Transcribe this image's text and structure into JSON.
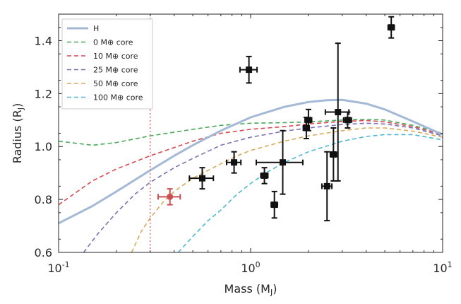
{
  "chart_data": {
    "type": "scatter",
    "xlabel": "Mass (M_J)",
    "ylabel": "Radius (R_J)",
    "x_scale": "log",
    "xlim": [
      0.1,
      10
    ],
    "ylim": [
      0.6,
      1.5
    ],
    "xticks": [
      "10^-1",
      "10^0",
      "10^1"
    ],
    "yticks": [
      "0.6",
      "0.8",
      "1.0",
      "1.2",
      "1.4"
    ],
    "grid": false,
    "legend": {
      "placement": "top-left",
      "entries": [
        "H",
        "0 M⊕ core",
        "10 M⊕ core",
        "25 M⊕ core",
        "50 M⊕ core",
        "100 M⊕ core"
      ]
    },
    "series": [
      {
        "name": "H",
        "style": "solid",
        "color": "#a4b9d6",
        "x": [
          0.1,
          0.15,
          0.2,
          0.3,
          0.4,
          0.5,
          0.7,
          1.0,
          1.5,
          2.0,
          2.5,
          3.0,
          4.0,
          5.0,
          7.0,
          10.0
        ],
        "y": [
          0.71,
          0.775,
          0.83,
          0.91,
          0.965,
          1.005,
          1.06,
          1.11,
          1.15,
          1.168,
          1.175,
          1.176,
          1.162,
          1.14,
          1.095,
          1.045
        ]
      },
      {
        "name": "0 M⊕ core",
        "style": "dashed",
        "color": "#4aa85a",
        "x": [
          0.1,
          0.15,
          0.2,
          0.3,
          0.5,
          0.7,
          1.0,
          1.5,
          2.0,
          3.0,
          4.0,
          5.0,
          7.0,
          10.0
        ],
        "y": [
          1.02,
          1.005,
          1.015,
          1.04,
          1.065,
          1.08,
          1.088,
          1.09,
          1.093,
          1.1,
          1.103,
          1.1,
          1.08,
          1.05
        ]
      },
      {
        "name": "10 M⊕ core",
        "style": "dashed",
        "color": "#d9474e",
        "x": [
          0.1,
          0.15,
          0.2,
          0.3,
          0.5,
          0.7,
          1.0,
          1.5,
          2.0,
          3.0,
          4.0,
          5.0,
          7.0,
          10.0
        ],
        "y": [
          0.78,
          0.87,
          0.915,
          0.965,
          1.02,
          1.05,
          1.065,
          1.075,
          1.085,
          1.095,
          1.098,
          1.093,
          1.075,
          1.045
        ]
      },
      {
        "name": "25 M⊕ core",
        "style": "dashed",
        "color": "#7d6fb5",
        "x": [
          0.135,
          0.16,
          0.2,
          0.25,
          0.3,
          0.4,
          0.5,
          0.7,
          1.0,
          1.5,
          2.0,
          3.0,
          4.0,
          5.0,
          7.0,
          10.0
        ],
        "y": [
          0.6,
          0.67,
          0.75,
          0.82,
          0.865,
          0.92,
          0.955,
          1.005,
          1.035,
          1.058,
          1.07,
          1.083,
          1.088,
          1.085,
          1.07,
          1.04
        ]
      },
      {
        "name": "50 M⊕ core",
        "style": "dashed",
        "color": "#d6ac5c",
        "x": [
          0.24,
          0.27,
          0.3,
          0.35,
          0.4,
          0.5,
          0.7,
          0.85,
          1.0,
          1.5,
          2.0,
          3.0,
          4.0,
          5.0,
          7.0,
          10.0
        ],
        "y": [
          0.6,
          0.68,
          0.73,
          0.79,
          0.83,
          0.88,
          0.935,
          0.965,
          0.985,
          1.02,
          1.04,
          1.06,
          1.07,
          1.07,
          1.058,
          1.035
        ]
      },
      {
        "name": "100 M⊕ core",
        "style": "dashed",
        "color": "#4eb9d6",
        "x": [
          0.42,
          0.5,
          0.6,
          0.7,
          0.85,
          1.0,
          1.2,
          1.5,
          2.0,
          3.0,
          4.0,
          5.0,
          7.0,
          10.0
        ],
        "y": [
          0.6,
          0.66,
          0.72,
          0.76,
          0.82,
          0.86,
          0.9,
          0.94,
          0.98,
          1.02,
          1.038,
          1.045,
          1.045,
          1.025
        ]
      }
    ],
    "vline": {
      "x": 0.3,
      "style": "dotted",
      "color": "#e06060"
    },
    "points": [
      {
        "x": 0.38,
        "y": 0.81,
        "xerr": 0.05,
        "yerr": 0.03,
        "color": "#c8504f",
        "marker": "circle"
      },
      {
        "x": 0.56,
        "y": 0.88,
        "xerr": 0.08,
        "yerr": 0.04,
        "color": "#111111",
        "marker": "square"
      },
      {
        "x": 0.82,
        "y": 0.94,
        "xerr": 0.07,
        "yerr": 0.04,
        "color": "#111111",
        "marker": "square"
      },
      {
        "x": 0.98,
        "y": 1.29,
        "xerr": 0.1,
        "yerr": 0.05,
        "color": "#111111",
        "marker": "square"
      },
      {
        "x": 1.18,
        "y": 0.89,
        "xerr": 0.05,
        "yerr": 0.03,
        "color": "#111111",
        "marker": "square"
      },
      {
        "x": 1.33,
        "y": 0.78,
        "xerr": 0.05,
        "yerr": 0.05,
        "color": "#111111",
        "marker": "square"
      },
      {
        "x": 1.47,
        "y": 0.94,
        "xerr": 0.4,
        "yerr": 0.12,
        "color": "#111111",
        "marker": "square"
      },
      {
        "x": 1.95,
        "y": 1.07,
        "xerr": 0.07,
        "yerr": 0.04,
        "color": "#111111",
        "marker": "square"
      },
      {
        "x": 2.0,
        "y": 1.1,
        "xerr": 0.08,
        "yerr": 0.04,
        "color": "#111111",
        "marker": "square"
      },
      {
        "x": 2.5,
        "y": 0.85,
        "xerr": 0.15,
        "yerr": 0.13,
        "color": "#111111",
        "marker": "square"
      },
      {
        "x": 2.7,
        "y": 0.97,
        "xerr": 0.1,
        "yerr": 0.1,
        "color": "#111111",
        "marker": "square"
      },
      {
        "x": 2.85,
        "y": 1.13,
        "xerr": 0.4,
        "yerr": 0.26,
        "color": "#111111",
        "marker": "square"
      },
      {
        "x": 3.2,
        "y": 1.1,
        "xerr": 0.15,
        "yerr": 0.03,
        "color": "#111111",
        "marker": "square"
      },
      {
        "x": 5.4,
        "y": 1.45,
        "xerr": 0.2,
        "yerr": 0.04,
        "color": "#111111",
        "marker": "square"
      }
    ]
  }
}
